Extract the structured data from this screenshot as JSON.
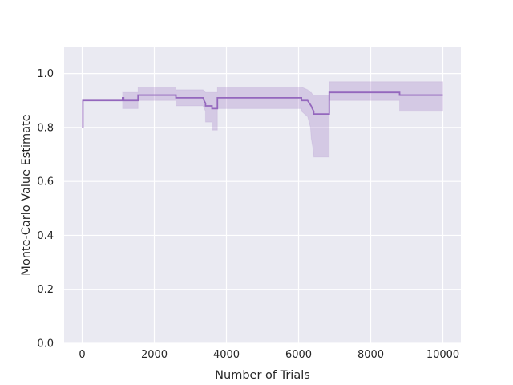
{
  "chart_data": {
    "type": "line",
    "title": "",
    "xlabel": "Number of Trials",
    "ylabel": "Monte-Carlo Value Estimate",
    "xlim": [
      -500,
      10500
    ],
    "ylim": [
      0,
      1.1
    ],
    "xticks": [
      0,
      2000,
      4000,
      6000,
      8000,
      10000
    ],
    "xtick_labels": [
      "0",
      "2000",
      "4000",
      "6000",
      "8000",
      "10000"
    ],
    "yticks": [
      0,
      0.2,
      0.4,
      0.6,
      0.8,
      1.0
    ],
    "ytick_labels": [
      "0.0",
      "0.2",
      "0.4",
      "0.6",
      "0.8",
      "1.0"
    ],
    "grid": true,
    "background": "#eaeaf2",
    "grid_color": "#ffffff",
    "line_color": "#9467bd",
    "band_color": "#9467bd",
    "series": [
      {
        "x": [
          0,
          20,
          20,
          1120,
          1120,
          1150,
          1150,
          1550,
          1550,
          2600,
          2600,
          3350,
          3380,
          3420,
          3420,
          3600,
          3600,
          3750,
          3750,
          6080,
          6080,
          6250,
          6300,
          6350,
          6380,
          6420,
          6420,
          6850,
          6850,
          8800,
          8800,
          10000
        ],
        "y": [
          0.8,
          0.8,
          0.9,
          0.9,
          0.91,
          0.91,
          0.9,
          0.9,
          0.92,
          0.92,
          0.91,
          0.91,
          0.9,
          0.89,
          0.88,
          0.88,
          0.87,
          0.87,
          0.91,
          0.91,
          0.9,
          0.9,
          0.89,
          0.88,
          0.87,
          0.86,
          0.85,
          0.85,
          0.93,
          0.93,
          0.92,
          0.92
        ],
        "band_x": [
          0,
          20,
          20,
          1120,
          1120,
          1550,
          1550,
          2600,
          2600,
          3350,
          3420,
          3420,
          3600,
          3600,
          3750,
          3750,
          6080,
          6080,
          6250,
          6330,
          6350,
          6400,
          6420,
          6850,
          6850,
          8800,
          8800,
          10000
        ],
        "band_low": [
          0.8,
          0.8,
          0.9,
          0.9,
          0.87,
          0.87,
          0.9,
          0.9,
          0.88,
          0.88,
          0.86,
          0.82,
          0.82,
          0.79,
          0.79,
          0.87,
          0.87,
          0.86,
          0.84,
          0.8,
          0.76,
          0.72,
          0.69,
          0.69,
          0.9,
          0.9,
          0.86,
          0.86
        ],
        "band_high": [
          0.8,
          0.8,
          0.9,
          0.9,
          0.93,
          0.93,
          0.95,
          0.95,
          0.94,
          0.94,
          0.93,
          0.93,
          0.93,
          0.93,
          0.93,
          0.95,
          0.95,
          0.95,
          0.94,
          0.93,
          0.93,
          0.92,
          0.92,
          0.92,
          0.97,
          0.97,
          0.97,
          0.97
        ]
      }
    ]
  }
}
